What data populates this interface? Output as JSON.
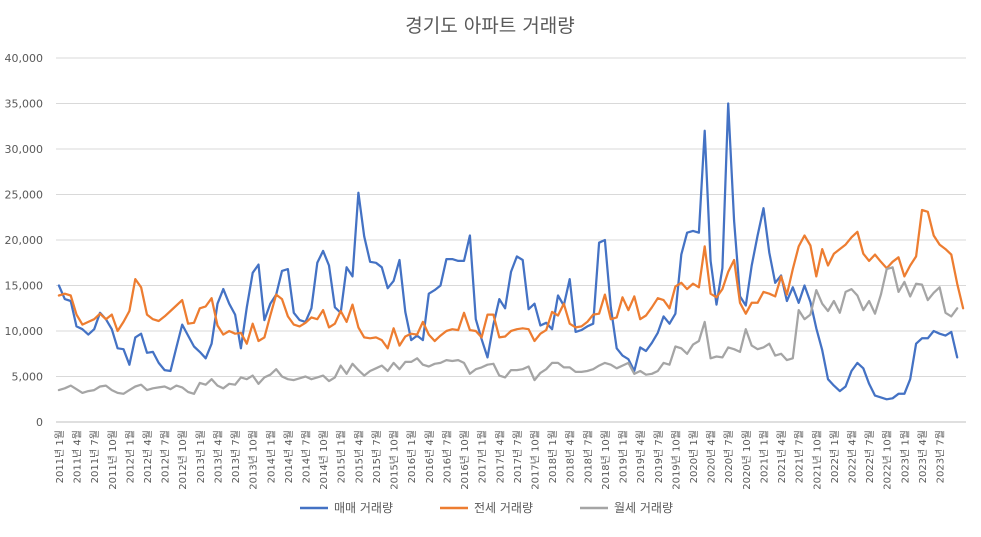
{
  "chart_data": {
    "type": "line",
    "title": "경기도 아파트 거래량",
    "xlabel": "",
    "ylabel": "",
    "ylim": [
      0,
      40000
    ],
    "yticks": [
      "0",
      "5,000",
      "10,000",
      "15,000",
      "20,000",
      "25,000",
      "30,000",
      "35,000",
      "40,000"
    ],
    "xtick_labels": [
      "2011년 1월",
      "2011년 4월",
      "2011년 7월",
      "2011년 10월",
      "2012년 1월",
      "2012년 4월",
      "2012년 7월",
      "2012년 10월",
      "2013년 1월",
      "2013년 4월",
      "2013년 7월",
      "2013년 10월",
      "2014년 1월",
      "2014년 4월",
      "2014년 7월",
      "2014년 10월",
      "2015년 1월",
      "2015년 4월",
      "2015년 7월",
      "2015년 10월",
      "2016년 1월",
      "2016년 4월",
      "2016년 7월",
      "2016년 10월",
      "2017년 1월",
      "2017년 4월",
      "2017년 7월",
      "2017년 10월",
      "2018년 1월",
      "2018년 4월",
      "2018년 7월",
      "2018년 10월",
      "2019년 1월",
      "2019년 4월",
      "2019년 7월",
      "2019년 10월",
      "2020년 1월",
      "2020년 4월",
      "2020년 7월",
      "2020년 10월",
      "2021년 1월",
      "2021년 4월",
      "2021년 7월",
      "2021년 10월",
      "2022년 1월",
      "2022년 4월",
      "2022년 7월",
      "2022년 10월",
      "2023년 1월",
      "2023년 4월",
      "2023년 7월"
    ],
    "grid": true,
    "legend_position": "bottom",
    "series": [
      {
        "name": "매매 거래량",
        "color": "#4472C4",
        "values": [
          15000,
          13500,
          13300,
          10500,
          10200,
          9600,
          10200,
          12000,
          11300,
          10200,
          8100,
          8000,
          6300,
          9300,
          9700,
          7600,
          7700,
          6500,
          5700,
          5600,
          8200,
          10700,
          9500,
          8300,
          7700,
          7000,
          8600,
          13000,
          14600,
          13000,
          11800,
          8100,
          12600,
          16400,
          17300,
          11200,
          13000,
          14000,
          16600,
          16800,
          12000,
          11200,
          11000,
          12500,
          17500,
          18800,
          17200,
          12600,
          12000,
          17000,
          16000,
          25200,
          20400,
          17600,
          17500,
          17000,
          14700,
          15500,
          17800,
          12100,
          9000,
          9500,
          9000,
          14100,
          14500,
          15000,
          17900,
          17900,
          17700,
          17700,
          20500,
          11300,
          9100,
          7100,
          10700,
          13500,
          12500,
          16500,
          18200,
          17800,
          12400,
          13000,
          10600,
          10900,
          10200,
          13900,
          12800,
          15700,
          9900,
          10100,
          10500,
          10800,
          19700,
          20000,
          12600,
          8100,
          7300,
          6900,
          5600,
          8200,
          7800,
          8700,
          9800,
          11600,
          10800,
          11900,
          18400,
          20800,
          21000,
          20800,
          32000,
          17700,
          12900,
          16900,
          35000,
          22100,
          13800,
          12800,
          17200,
          20500,
          23500,
          18600,
          15300,
          16100,
          13300,
          14800,
          13100,
          15000,
          13200,
          10300,
          7900,
          4700,
          4000,
          3400,
          3900,
          5600,
          6500,
          5900,
          4200,
          2900,
          2700,
          2500,
          2600,
          3100,
          3100,
          4700,
          8600,
          9200,
          9200,
          10000,
          9700,
          9500,
          9900,
          7100
        ]
      },
      {
        "name": "전세 거래량",
        "color": "#ED7D31",
        "values": [
          13900,
          14100,
          13900,
          11800,
          10700,
          11000,
          11300,
          11900,
          11300,
          11800,
          10000,
          11000,
          12200,
          15700,
          14800,
          11800,
          11300,
          11100,
          11600,
          12200,
          12800,
          13400,
          10800,
          10900,
          12500,
          12700,
          13600,
          10600,
          9600,
          10000,
          9700,
          9800,
          8600,
          10800,
          8900,
          9300,
          11700,
          14000,
          13500,
          11600,
          10700,
          10500,
          10900,
          11500,
          11300,
          12300,
          10400,
          10800,
          12200,
          11000,
          12900,
          10400,
          9300,
          9200,
          9300,
          9000,
          8100,
          10300,
          8400,
          9400,
          9700,
          9600,
          11000,
          9600,
          8900,
          9500,
          10000,
          10200,
          10100,
          12000,
          10100,
          10000,
          9300,
          11800,
          11800,
          9300,
          9400,
          10000,
          10200,
          10300,
          10200,
          8900,
          9700,
          10100,
          12100,
          11700,
          13000,
          10800,
          10400,
          10500,
          11000,
          11800,
          11900,
          14000,
          11300,
          11500,
          13700,
          12300,
          13800,
          11300,
          11700,
          12600,
          13600,
          13400,
          12500,
          14900,
          15300,
          14600,
          15200,
          14800,
          19300,
          14100,
          13700,
          14600,
          16500,
          17800,
          13100,
          11900,
          13100,
          13100,
          14300,
          14100,
          13800,
          16000,
          14000,
          16800,
          19300,
          20500,
          19400,
          16000,
          19000,
          17200,
          18500,
          19000,
          19500,
          20300,
          20900,
          18500,
          17700,
          18400,
          17600,
          16900,
          17600,
          18100,
          16000,
          17200,
          18200,
          23300,
          23100,
          20500,
          19500,
          19000,
          18400,
          15200,
          12500
        ]
      },
      {
        "name": "월세 거래량",
        "color": "#A5A5A5",
        "values": [
          3500,
          3700,
          4000,
          3600,
          3200,
          3400,
          3500,
          3900,
          4000,
          3500,
          3200,
          3100,
          3500,
          3900,
          4100,
          3500,
          3700,
          3800,
          3900,
          3600,
          4000,
          3800,
          3300,
          3100,
          4300,
          4100,
          4700,
          4000,
          3700,
          4200,
          4100,
          4900,
          4700,
          5100,
          4200,
          4900,
          5200,
          5800,
          5000,
          4700,
          4600,
          4800,
          5000,
          4700,
          4900,
          5100,
          4500,
          4900,
          6200,
          5300,
          6400,
          5700,
          5100,
          5600,
          5900,
          6200,
          5600,
          6500,
          5800,
          6600,
          6600,
          7000,
          6300,
          6100,
          6400,
          6500,
          6800,
          6700,
          6800,
          6500,
          5300,
          5800,
          6000,
          6300,
          6400,
          5100,
          4900,
          5700,
          5700,
          5800,
          6100,
          4600,
          5400,
          5800,
          6500,
          6500,
          6000,
          6000,
          5500,
          5500,
          5600,
          5800,
          6200,
          6500,
          6300,
          5900,
          6200,
          6500,
          5300,
          5600,
          5200,
          5300,
          5600,
          6500,
          6300,
          8300,
          8100,
          7500,
          8500,
          8900,
          11000,
          7000,
          7200,
          7100,
          8200,
          8000,
          7700,
          10200,
          8400,
          8000,
          8200,
          8600,
          7300,
          7500,
          6800,
          7000,
          12300,
          11300,
          11800,
          14500,
          13000,
          12200,
          13300,
          12000,
          14300,
          14600,
          13900,
          12300,
          13300,
          11900,
          14000,
          16800,
          17000,
          14300,
          15400,
          13800,
          15200,
          15100,
          13400,
          14200,
          14800,
          12000,
          11600,
          12500
        ]
      }
    ]
  }
}
